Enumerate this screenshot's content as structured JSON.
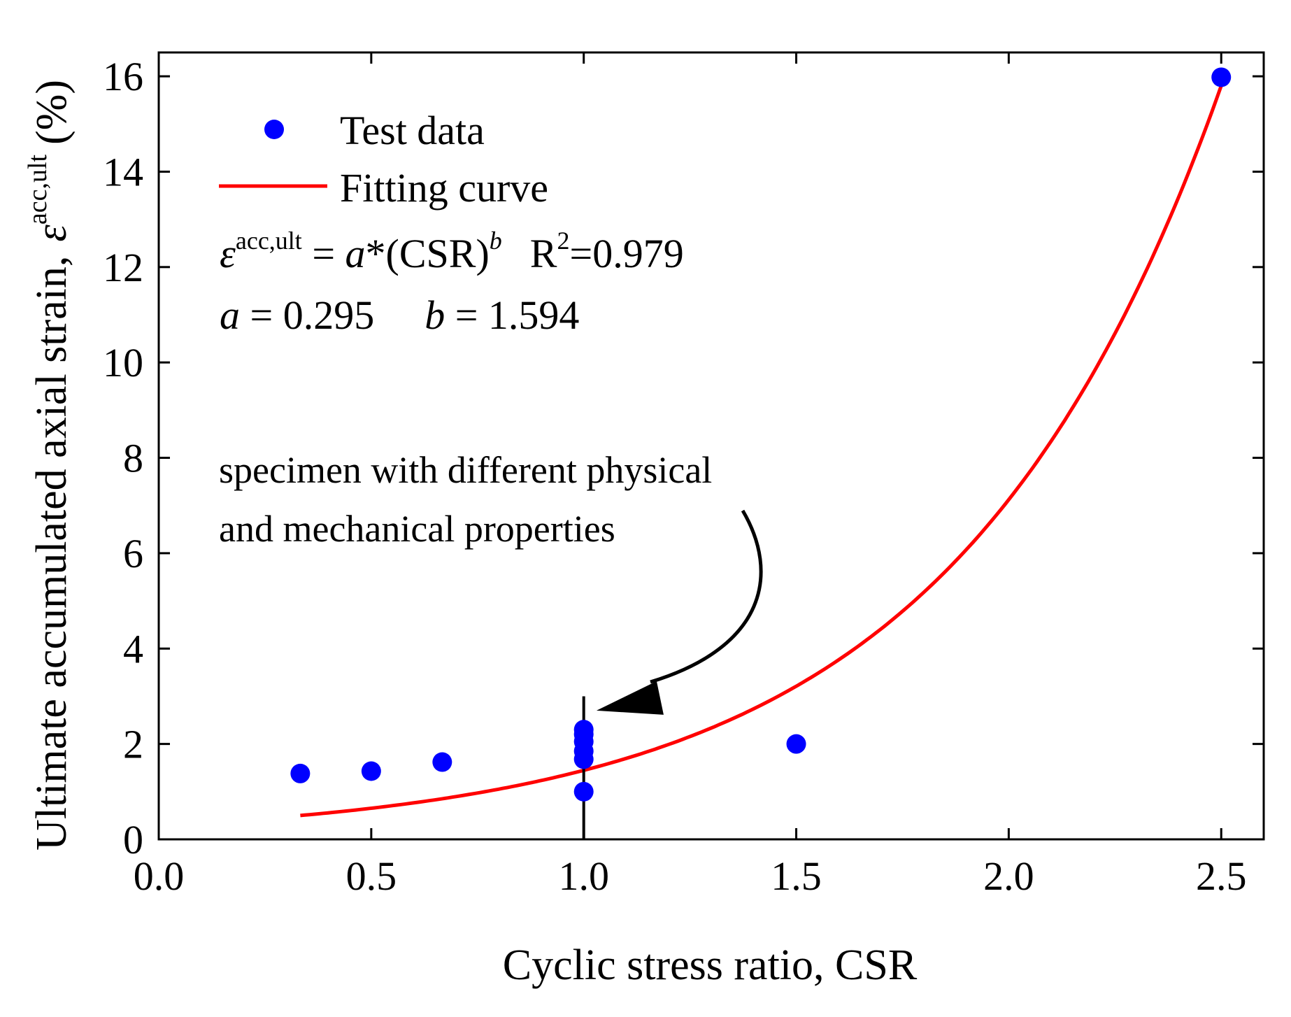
{
  "chart_data": {
    "type": "scatter",
    "title": "",
    "xlabel": "Cyclic stress ratio, CSR",
    "ylabel": "Ultimate accumulated axial strain,",
    "ylabel_symbol": "ε",
    "ylabel_superscript": "acc,ult",
    "ylabel_unit": "(%)",
    "xlim": [
      0.0,
      2.6
    ],
    "ylim": [
      0,
      16.5
    ],
    "x_ticks": [
      0.0,
      0.5,
      1.0,
      1.5,
      2.0,
      2.5
    ],
    "x_tick_labels": [
      "0.0",
      "0.5",
      "1.0",
      "1.5",
      "2.0",
      "2.5"
    ],
    "y_ticks": [
      0,
      2,
      4,
      6,
      8,
      10,
      12,
      14,
      16
    ],
    "y_tick_labels": [
      "0",
      "2",
      "4",
      "6",
      "8",
      "10",
      "12",
      "14",
      "16"
    ],
    "grid": false,
    "legend_position": "top-left",
    "series": [
      {
        "name": "Test data",
        "kind": "points",
        "color": "#0000ff",
        "points": [
          {
            "x": 0.333,
            "y": 1.38
          },
          {
            "x": 0.5,
            "y": 1.43
          },
          {
            "x": 0.667,
            "y": 1.62
          },
          {
            "x": 1.0,
            "y": 1.0
          },
          {
            "x": 1.0,
            "y": 1.68
          },
          {
            "x": 1.0,
            "y": 1.85
          },
          {
            "x": 1.0,
            "y": 2.05
          },
          {
            "x": 1.0,
            "y": 2.2
          },
          {
            "x": 1.0,
            "y": 2.3
          },
          {
            "x": 1.5,
            "y": 2.0
          },
          {
            "x": 2.5,
            "y": 15.98
          }
        ]
      },
      {
        "name": "Fitting curve",
        "kind": "line",
        "color": "#ff0000",
        "model": "a*(CSR)^b",
        "a": 0.295,
        "b": 1.594,
        "x_range": [
          0.333,
          2.5
        ]
      }
    ],
    "vertical_line": {
      "x": 1.0,
      "y_range": [
        0,
        3.0
      ],
      "color": "#000000"
    },
    "equation": {
      "lhs_symbol": "ε",
      "lhs_superscript": "acc,ult",
      "rhs_prefix": " = ",
      "rhs_a": "a",
      "rhs_mid": "*(CSR)",
      "rhs_exp": "b",
      "r2_label": "R",
      "r2_exp": "2",
      "r2_value": "=0.979"
    },
    "params": {
      "a_symbol": "a",
      "a_value": " = 0.295",
      "b_symbol": "b",
      "b_value": " = 1.594"
    },
    "annotation": {
      "lines": [
        "specimen with different physical",
        "and mechanical properties"
      ],
      "arrow_target": {
        "x": 1.03,
        "y": 2.7
      },
      "color": "#000000"
    }
  }
}
